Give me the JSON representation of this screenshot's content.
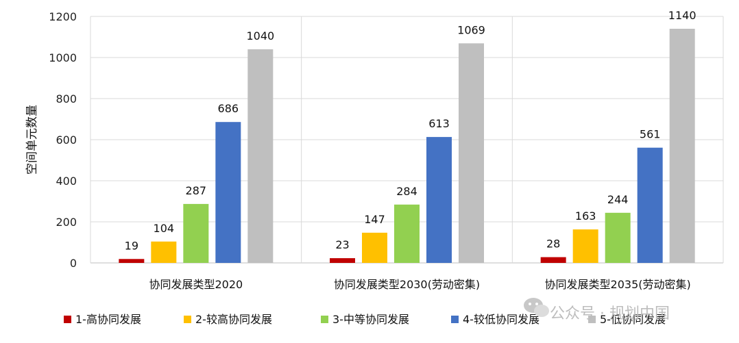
{
  "chart_data": {
    "type": "bar",
    "categories": [
      "协同发展类型2020",
      "协同发展类型2030(劳动密集)",
      "协同发展类型2035(劳动密集)"
    ],
    "series": [
      {
        "name": "1-高协同发展",
        "color": "#c00000",
        "values": [
          19,
          23,
          28
        ]
      },
      {
        "name": "2-较高协同发展",
        "color": "#ffc000",
        "values": [
          104,
          147,
          163
        ]
      },
      {
        "name": "3-中等协同发展",
        "color": "#92d050",
        "values": [
          287,
          284,
          244
        ]
      },
      {
        "name": "4-较低协同发展",
        "color": "#4472c4",
        "values": [
          686,
          613,
          561
        ]
      },
      {
        "name": "5-低协同发展",
        "color": "#bfbfbf",
        "values": [
          1040,
          1069,
          1140
        ]
      }
    ],
    "ylabel": "空间单元数量",
    "ylim": [
      0,
      1200
    ],
    "yticks": [
      0,
      200,
      400,
      600,
      800,
      1000,
      1200
    ],
    "grid": true,
    "legend": "bottom"
  },
  "watermark": {
    "text": "公众号 · 规划中国",
    "icon": "wechat-icon"
  }
}
